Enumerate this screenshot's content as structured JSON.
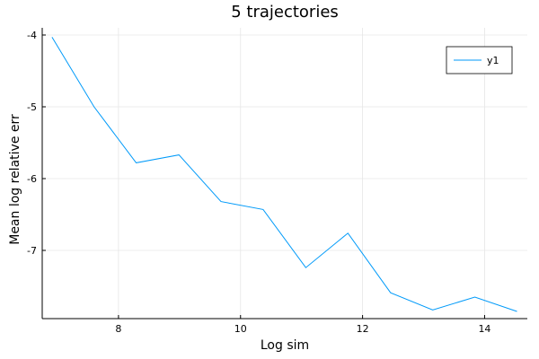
{
  "chart_data": {
    "type": "line",
    "title": "5 trajectories",
    "xlabel": "Log sim",
    "ylabel": "Mean log relative err",
    "xlim": [
      6.75,
      14.7
    ],
    "ylim": [
      -7.95,
      -3.9
    ],
    "xticks": [
      8,
      10,
      12,
      14
    ],
    "yticks": [
      -4,
      -5,
      -6,
      -7
    ],
    "grid": true,
    "legend": "top-right",
    "series": [
      {
        "name": "y1",
        "color": "#009AF9",
        "x": [
          6.91,
          7.6,
          8.29,
          8.99,
          9.68,
          10.37,
          11.07,
          11.76,
          12.46,
          13.15,
          13.84,
          14.53
        ],
        "y": [
          -4.03,
          -5.0,
          -5.78,
          -5.67,
          -6.32,
          -6.43,
          -7.24,
          -6.76,
          -7.59,
          -7.83,
          -7.65,
          -7.85
        ]
      }
    ]
  }
}
